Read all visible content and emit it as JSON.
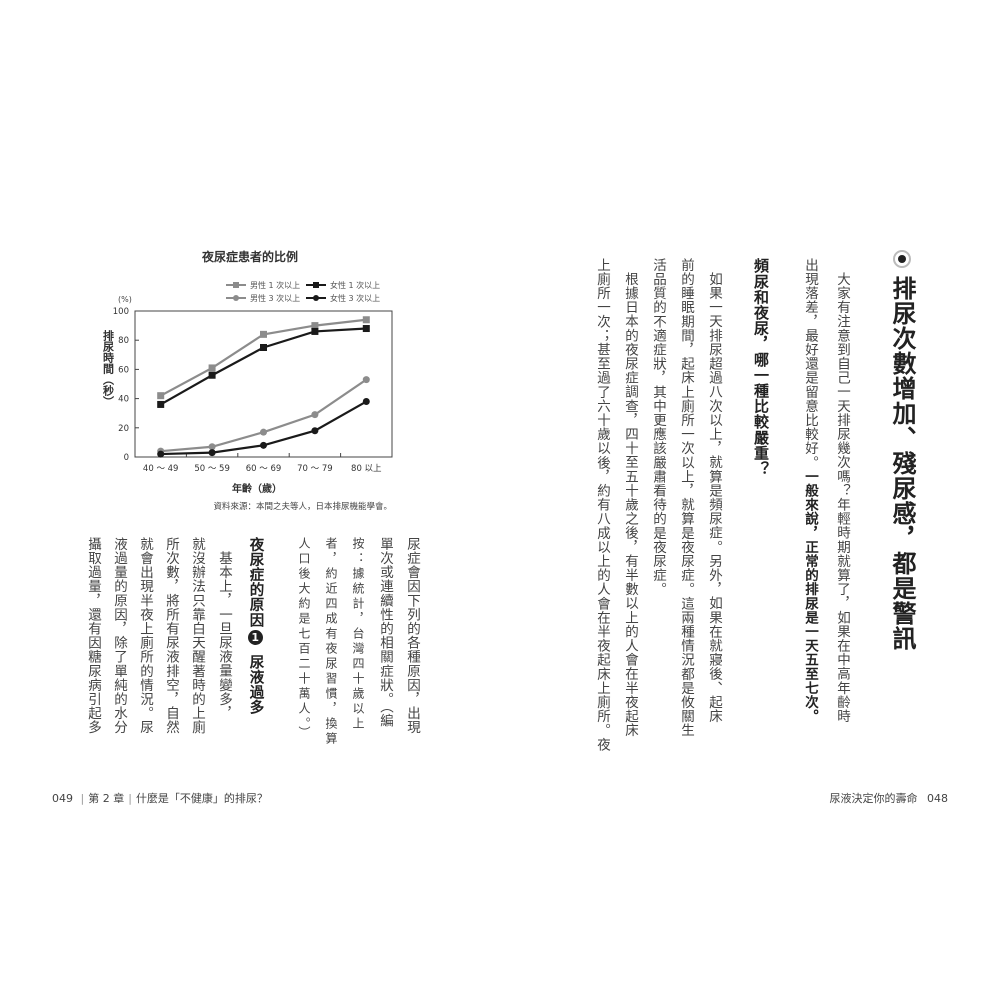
{
  "right_page": {
    "title": "排尿次數增加、殘尿感，都是警訊",
    "bullet_icon": "bullet-circle-icon",
    "para1_line1": "大家有注意到自己一天排尿幾次嗎？年輕時期就算了，如果在中高年齡時",
    "para1_line2_normal": "出現落差，最好還是留意比較好。",
    "para1_line2_bold": "一般來說，正常的排尿是一天五至七次。",
    "heading": "頻尿和夜尿，哪一種比較嚴重？",
    "lines": [
      "如果一天排尿超過八次以上，就算是頻尿症。另外，如果在就寢後、起床",
      "前的睡眠期間，起床上廁所一次以上，就算是夜尿症。這兩種情況都是攸關生",
      "活品質的不適症狀，其中更應該嚴肅看待的是夜尿症。",
      "根據日本的夜尿症調查，四十至五十歲之後，有半數以上的人會在半夜起床",
      "上廁所一次；甚至過了六十歲以後，約有八成以上的人會在半夜起床上廁所。夜"
    ],
    "footer": "尿液決定你的壽命",
    "page_number": "048"
  },
  "left_page": {
    "lines_top": [
      "尿症會因下列的各種原因，出現",
      "單次或連續性的相關症狀。（編"
    ],
    "note_lines": [
      "按：據統計，台灣四十歲以上",
      "者，約近四成有夜尿習慣，換算",
      "人口後大約是七百二十萬人。）"
    ],
    "heading_part1": "夜尿症的原因",
    "heading_number": "1",
    "heading_part2": "尿液過多",
    "lines_bottom": [
      "基本上，一旦尿液量變多，",
      "就沒辦法只靠白天醒著時的上廁",
      "所次數，將所有尿液排空，自然",
      "就會出現半夜上廁所的情況。尿",
      "液過量的原因，除了單純的水分",
      "攝取過量，還有因糖尿病引起多"
    ],
    "page_number": "049",
    "chapter": "第 2 章",
    "chapter_title": "什麼是「不健康」的排尿？"
  },
  "chart_data": {
    "type": "line",
    "title": "夜尿症患者的比例",
    "ylabel": "排尿時間（秒）",
    "yunit": "(%)",
    "xlabel": "年齡（歲）",
    "source": "資料來源：本間之夫等人，日本排尿機能學會。",
    "categories": [
      "40 ～ 49",
      "50 ～ 59",
      "60 ～ 69",
      "70 ～ 79",
      "80 以上"
    ],
    "ylim": [
      0,
      100
    ],
    "yticks": [
      0,
      20,
      40,
      60,
      80,
      100
    ],
    "legend_placement": "top-right",
    "grid": false,
    "series": [
      {
        "name": "男性 1 次以上",
        "values": [
          42,
          61,
          84,
          90,
          94
        ],
        "color": "#8c8c8c",
        "marker": "square"
      },
      {
        "name": "女性 1 次以上",
        "values": [
          36,
          56,
          75,
          86,
          88
        ],
        "color": "#1a1a1a",
        "marker": "square"
      },
      {
        "name": "男性 3 次以上",
        "values": [
          4,
          7,
          17,
          29,
          53
        ],
        "color": "#8c8c8c",
        "marker": "circle"
      },
      {
        "name": "女性 3 次以上",
        "values": [
          2,
          3,
          8,
          18,
          38
        ],
        "color": "#1a1a1a",
        "marker": "circle"
      }
    ]
  }
}
